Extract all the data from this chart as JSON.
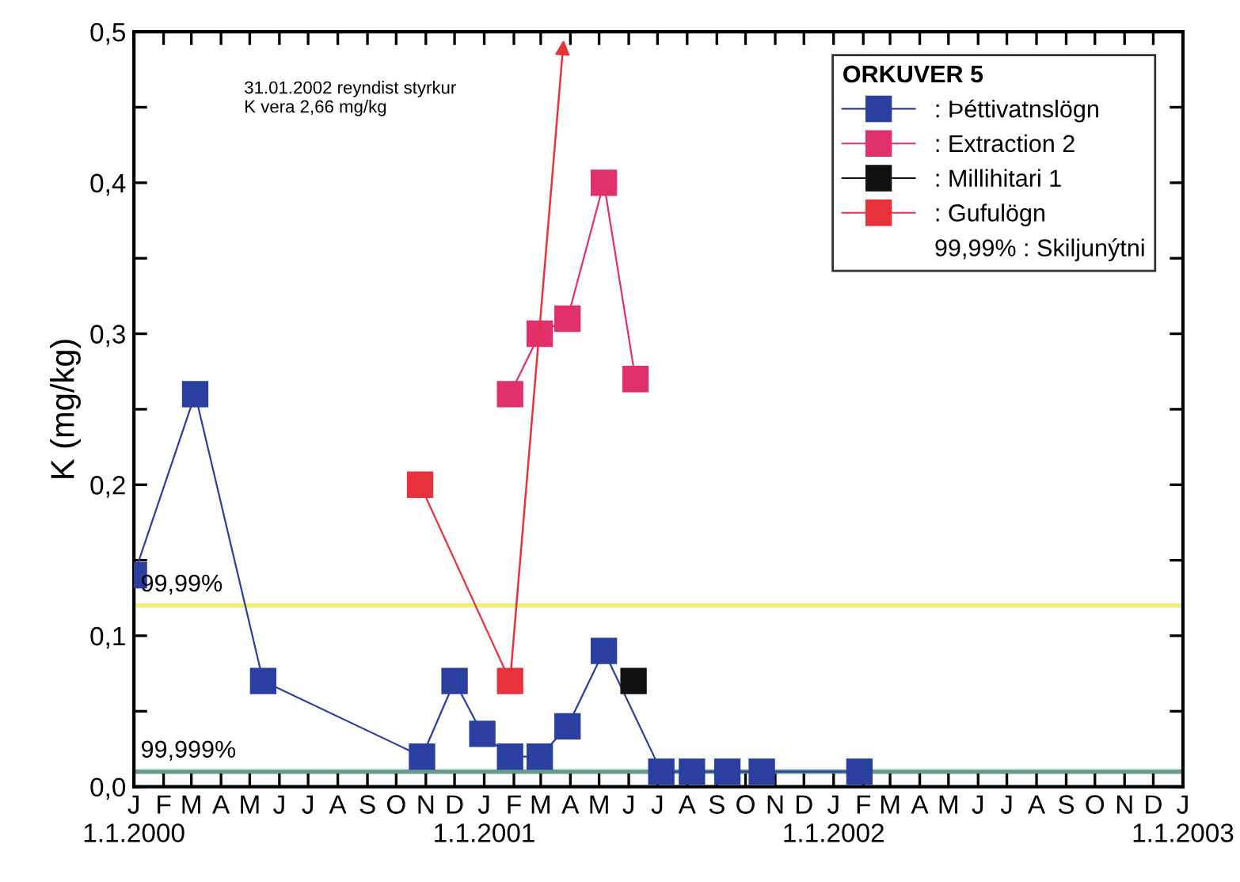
{
  "chart_data": {
    "type": "line",
    "ylabel": "K (mg/kg)",
    "legend_title": "ORKUVER 5",
    "legend": "top right",
    "grid": false,
    "marker": "square",
    "line_style": "solid",
    "xlim": [
      "2000-01-01",
      "2003-01-01"
    ],
    "xticks": [
      {
        "value": "2000-01-01",
        "label": "J\n1.1.2000"
      },
      {
        "value": "2000-02-01",
        "label": "F"
      },
      {
        "value": "2000-03-01",
        "label": "M"
      },
      {
        "value": "2000-04-01",
        "label": "A"
      },
      {
        "value": "2000-05-01",
        "label": "M"
      },
      {
        "value": "2000-06-01",
        "label": "J"
      },
      {
        "value": "2000-07-01",
        "label": "J"
      },
      {
        "value": "2000-08-01",
        "label": "A"
      },
      {
        "value": "2000-09-01",
        "label": "S"
      },
      {
        "value": "2000-10-01",
        "label": "O"
      },
      {
        "value": "2000-11-01",
        "label": "N"
      },
      {
        "value": "2000-12-01",
        "label": "D"
      },
      {
        "value": "2001-01-01",
        "label": "J\n1.1.2001"
      },
      {
        "value": "2001-02-01",
        "label": "F"
      },
      {
        "value": "2001-03-01",
        "label": "M"
      },
      {
        "value": "2001-04-01",
        "label": "A"
      },
      {
        "value": "2001-05-01",
        "label": "M"
      },
      {
        "value": "2001-06-01",
        "label": "J"
      },
      {
        "value": "2001-07-01",
        "label": "J"
      },
      {
        "value": "2001-08-01",
        "label": "A"
      },
      {
        "value": "2001-09-01",
        "label": "S"
      },
      {
        "value": "2001-10-01",
        "label": "O"
      },
      {
        "value": "2001-11-01",
        "label": "N"
      },
      {
        "value": "2001-12-01",
        "label": "D"
      },
      {
        "value": "2002-01-01",
        "label": "J\n1.1.2002"
      },
      {
        "value": "2002-02-01",
        "label": "F"
      },
      {
        "value": "2002-03-01",
        "label": "M"
      },
      {
        "value": "2002-04-01",
        "label": "A"
      },
      {
        "value": "2002-05-01",
        "label": "M"
      },
      {
        "value": "2002-06-01",
        "label": "J"
      },
      {
        "value": "2002-07-01",
        "label": "J"
      },
      {
        "value": "2002-08-01",
        "label": "A"
      },
      {
        "value": "2002-09-01",
        "label": "S"
      },
      {
        "value": "2002-10-01",
        "label": "O"
      },
      {
        "value": "2002-11-01",
        "label": "N"
      },
      {
        "value": "2002-12-01",
        "label": "D"
      },
      {
        "value": "2003-01-01",
        "label": "J\n1.1.2003"
      }
    ],
    "ylim": [
      0,
      0.5
    ],
    "yticks": [
      {
        "value": 0,
        "label": "0,0"
      },
      {
        "value": 0.05,
        "label": null
      },
      {
        "value": 0.1,
        "label": "0,1"
      },
      {
        "value": 0.15,
        "label": null
      },
      {
        "value": 0.2,
        "label": "0,2"
      },
      {
        "value": 0.25,
        "label": null
      },
      {
        "value": 0.3,
        "label": "0,3"
      },
      {
        "value": 0.35,
        "label": null
      },
      {
        "value": 0.4,
        "label": "0,4"
      },
      {
        "value": 0.45,
        "label": null
      },
      {
        "value": 0.5,
        "label": "0,5"
      }
    ],
    "series": [
      {
        "name": ": Þéttivatnslögn",
        "color": "#2b3fa0",
        "x": [
          "2000-01-01",
          "2000-03-05",
          "2000-05-15",
          "2000-10-28",
          "2000-12-01",
          "2000-12-30",
          "2001-01-28",
          "2001-02-28",
          "2001-03-29",
          "2001-05-06",
          "2001-07-05",
          "2001-08-06",
          "2001-09-12",
          "2001-10-18",
          "2002-01-28"
        ],
        "values": [
          0.14,
          0.26,
          0.07,
          0.02,
          0.07,
          0.035,
          0.02,
          0.02,
          0.04,
          0.09,
          0.01,
          0.01,
          0.01,
          0.01,
          0.01
        ]
      },
      {
        "name": ": Extraction 2",
        "color": "#e0306e",
        "x": [
          "2001-01-28",
          "2001-02-28",
          "2001-03-29",
          "2001-05-06",
          "2001-06-08"
        ],
        "values": [
          0.26,
          0.3,
          0.31,
          0.4,
          0.27
        ]
      },
      {
        "name": ": Millihitari 1",
        "color": "#111111",
        "x": [
          "2001-06-06"
        ],
        "values": [
          0.07
        ]
      },
      {
        "name": ": Gufulögn",
        "color": "#e8323c",
        "x": [
          "2000-10-26",
          "2001-01-28"
        ],
        "values": [
          0.2,
          0.07
        ]
      }
    ],
    "ref_lines": [
      {
        "axis": "y",
        "value": 0.12,
        "color": "#f2f07a"
      },
      {
        "axis": "y",
        "value": 0.01,
        "color": "#6a9c8c"
      }
    ],
    "annotations": [
      "31.01.2002 reyndist styrkur\nK vera 2,66 mg/kg",
      "99,99% : Skiljunýtni",
      {
        "text": "99,99%",
        "x": "2000-01-08",
        "y": 0.12
      },
      {
        "text": "99,999%",
        "x": "2000-01-08",
        "y": 0.01
      }
    ]
  }
}
